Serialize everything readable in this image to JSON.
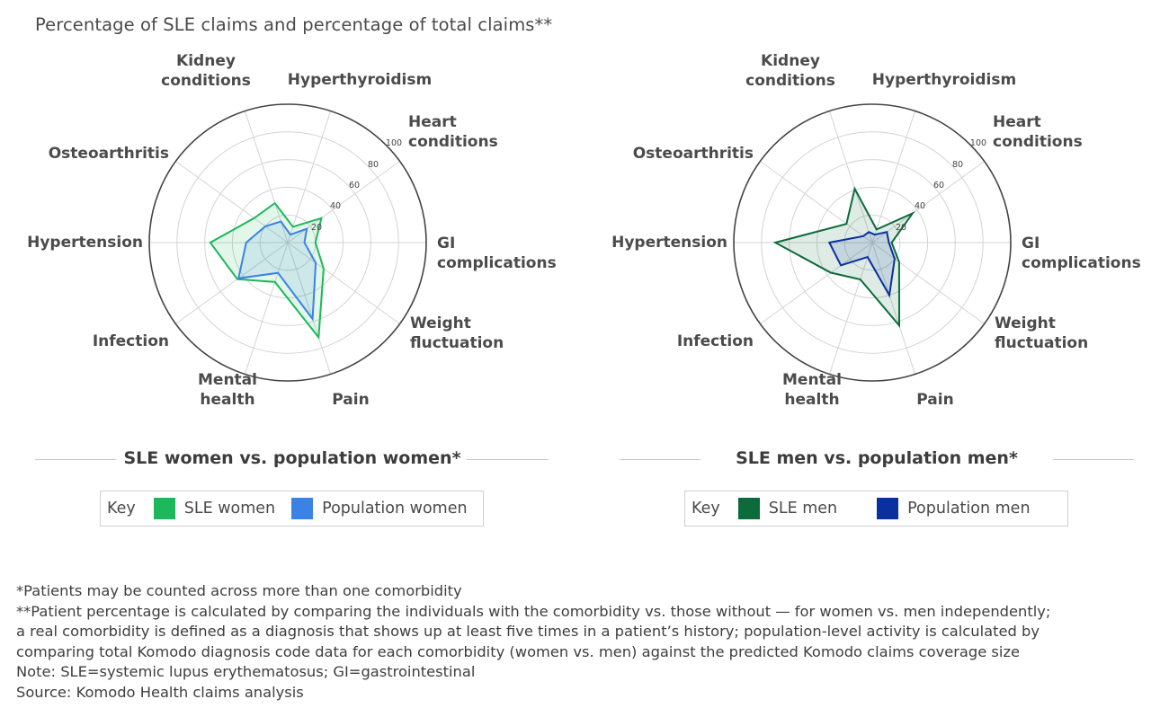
{
  "title": "Percentage of SLE claims and percentage of total claims**",
  "colors": {
    "sle_women": "#1db85b",
    "population_women": "#3b82e6",
    "sle_men": "#0b6b3a",
    "population_men": "#0a2f9f"
  },
  "chart_data": [
    {
      "type": "radar",
      "subtitle": "SLE women vs. population women*",
      "categories": [
        "Hyperthyroidism",
        "Heart conditions",
        "GI complications",
        "Weight fluctuation",
        "Pain",
        "Mental health",
        "Infection",
        "Hypertension",
        "Osteoarthritis",
        "Kidney conditions"
      ],
      "radial_ticks": [
        "20",
        "40",
        "60",
        "80",
        "100"
      ],
      "rlim": [
        0,
        100
      ],
      "grid": true,
      "legend": {
        "key_label": "Key",
        "position": "bottom"
      },
      "series": [
        {
          "name": "SLE women",
          "color": "#1db85b",
          "values": [
            12,
            30,
            20,
            32,
            72,
            30,
            45,
            56,
            30,
            30
          ]
        },
        {
          "name": "Population women",
          "color": "#3b82e6",
          "values": [
            6,
            17,
            12,
            25,
            58,
            23,
            44,
            30,
            20,
            16
          ]
        }
      ]
    },
    {
      "type": "radar",
      "subtitle": "SLE men vs. population men*",
      "categories": [
        "Hyperthyroidism",
        "Heart conditions",
        "GI complications",
        "Weight fluctuation",
        "Pain",
        "Mental health",
        "Infection",
        "Hypertension",
        "Osteoarthritis",
        "Kidney conditions"
      ],
      "radial_ticks": [
        "20",
        "40",
        "60",
        "80",
        "100"
      ],
      "rlim": [
        0,
        100
      ],
      "grid": true,
      "legend": {
        "key_label": "Key",
        "position": "bottom"
      },
      "series": [
        {
          "name": "SLE men",
          "color": "#0b6b3a",
          "values": [
            10,
            36,
            14,
            24,
            63,
            28,
            37,
            70,
            23,
            41
          ]
        },
        {
          "name": "Population men",
          "color": "#0a2f9f",
          "values": [
            6,
            13,
            12,
            20,
            40,
            11,
            28,
            31,
            8,
            8
          ]
        }
      ]
    }
  ],
  "category_display": [
    [
      "Hyperthyroidism"
    ],
    [
      "Heart",
      "conditions"
    ],
    [
      "GI",
      "complications"
    ],
    [
      "Weight",
      "fluctuation"
    ],
    [
      "Pain"
    ],
    [
      "Mental",
      "health"
    ],
    [
      "Infection"
    ],
    [
      "Hypertension"
    ],
    [
      "Osteoarthritis"
    ],
    [
      "Kidney",
      "conditions"
    ]
  ],
  "footnotes": {
    "line1": "*Patients may be counted across more than one comorbidity",
    "line2": "**Patient percentage is calculated by comparing the individuals with the comorbidity vs. those without — for women vs. men independently;",
    "line3": "a real comorbidity is defined as a diagnosis that shows up at least five times in a patient’s history; population-level activity is calculated by",
    "line4": "comparing total Komodo diagnosis code data for each comorbidity (women vs. men) against the predicted Komodo claims coverage size",
    "note": "Note: SLE=systemic lupus erythematosus; GI=gastrointestinal",
    "source": "Source: Komodo Health claims analysis"
  }
}
